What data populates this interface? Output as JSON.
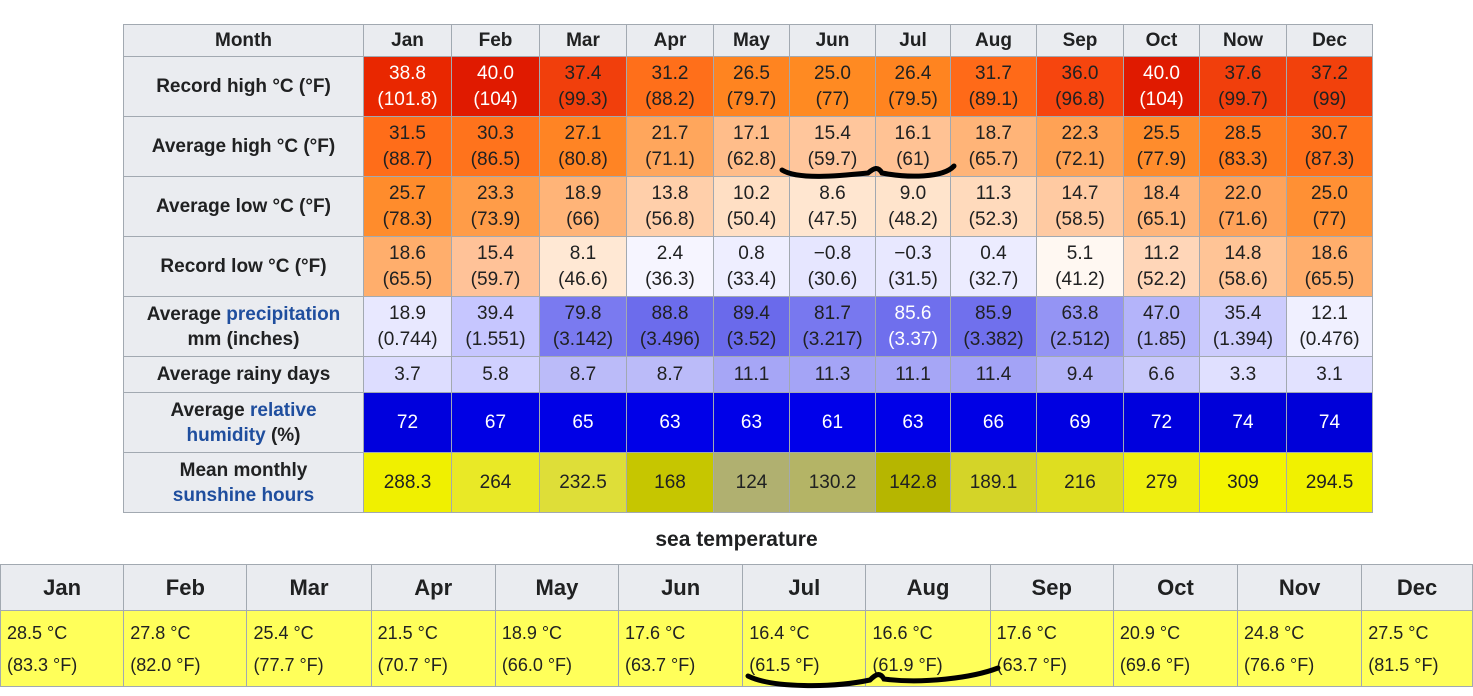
{
  "climate_table": {
    "header_label": "Month",
    "months": [
      "Jan",
      "Feb",
      "Mar",
      "Apr",
      "May",
      "Jun",
      "Jul",
      "Aug",
      "Sep",
      "Oct",
      "Now",
      "Dec"
    ],
    "rows": [
      {
        "label": "Record high °C (°F)",
        "cells": [
          {
            "c": "38.8",
            "f": "(101.8)",
            "bg": "#e92700",
            "fg": "#ffffff"
          },
          {
            "c": "40.0",
            "f": "(104)",
            "bg": "#e01a00",
            "fg": "#ffffff"
          },
          {
            "c": "37.4",
            "f": "(99.3)",
            "bg": "#f13f0c",
            "fg": "#202122"
          },
          {
            "c": "31.2",
            "f": "(88.2)",
            "bg": "#ff6f1a",
            "fg": "#202122"
          },
          {
            "c": "26.5",
            "f": "(79.7)",
            "bg": "#ff8420",
            "fg": "#202122"
          },
          {
            "c": "25.0",
            "f": "(77)",
            "bg": "#ff8a22",
            "fg": "#202122"
          },
          {
            "c": "26.4",
            "f": "(79.5)",
            "bg": "#ff8420",
            "fg": "#202122"
          },
          {
            "c": "31.7",
            "f": "(89.1)",
            "bg": "#ff6a18",
            "fg": "#202122"
          },
          {
            "c": "36.0",
            "f": "(96.8)",
            "bg": "#f6450e",
            "fg": "#202122"
          },
          {
            "c": "40.0",
            "f": "(104)",
            "bg": "#e01a00",
            "fg": "#ffffff"
          },
          {
            "c": "37.6",
            "f": "(99.7)",
            "bg": "#f13f0c",
            "fg": "#202122"
          },
          {
            "c": "37.2",
            "f": "(99)",
            "bg": "#f2410c",
            "fg": "#202122"
          }
        ]
      },
      {
        "label": "Average high °C (°F)",
        "cells": [
          {
            "c": "31.5",
            "f": "(88.7)",
            "bg": "#ff6d19",
            "fg": "#202122"
          },
          {
            "c": "30.3",
            "f": "(86.5)",
            "bg": "#ff731c",
            "fg": "#202122"
          },
          {
            "c": "27.1",
            "f": "(80.8)",
            "bg": "#ff8424",
            "fg": "#202122"
          },
          {
            "c": "21.7",
            "f": "(71.1)",
            "bg": "#ffa65c",
            "fg": "#202122"
          },
          {
            "c": "17.1",
            "f": "(62.8)",
            "bg": "#ffbd8a",
            "fg": "#202122"
          },
          {
            "c": "15.4",
            "f": "(59.7)",
            "bg": "#ffc69c",
            "fg": "#202122"
          },
          {
            "c": "16.1",
            "f": "(61)",
            "bg": "#ffc294",
            "fg": "#202122"
          },
          {
            "c": "18.7",
            "f": "(65.7)",
            "bg": "#ffb478",
            "fg": "#202122"
          },
          {
            "c": "22.3",
            "f": "(72.1)",
            "bg": "#ffa255",
            "fg": "#202122"
          },
          {
            "c": "25.5",
            "f": "(77.9)",
            "bg": "#ff8c2c",
            "fg": "#202122"
          },
          {
            "c": "28.5",
            "f": "(83.3)",
            "bg": "#ff7c20",
            "fg": "#202122"
          },
          {
            "c": "30.7",
            "f": "(87.3)",
            "bg": "#ff711b",
            "fg": "#202122"
          }
        ]
      },
      {
        "label": "Average low °C (°F)",
        "cells": [
          {
            "c": "25.7",
            "f": "(78.3)",
            "bg": "#ff8c2c",
            "fg": "#202122"
          },
          {
            "c": "23.3",
            "f": "(73.9)",
            "bg": "#ff9c48",
            "fg": "#202122"
          },
          {
            "c": "18.9",
            "f": "(66)",
            "bg": "#ffb478",
            "fg": "#202122"
          },
          {
            "c": "13.8",
            "f": "(56.8)",
            "bg": "#ffcfaa",
            "fg": "#202122"
          },
          {
            "c": "10.2",
            "f": "(50.4)",
            "bg": "#ffdfc4",
            "fg": "#202122"
          },
          {
            "c": "8.6",
            "f": "(47.5)",
            "bg": "#ffe6d0",
            "fg": "#202122"
          },
          {
            "c": "9.0",
            "f": "(48.2)",
            "bg": "#ffe4cc",
            "fg": "#202122"
          },
          {
            "c": "11.3",
            "f": "(52.3)",
            "bg": "#ffdabc",
            "fg": "#202122"
          },
          {
            "c": "14.7",
            "f": "(58.5)",
            "bg": "#ffcaa2",
            "fg": "#202122"
          },
          {
            "c": "18.4",
            "f": "(65.1)",
            "bg": "#ffb67c",
            "fg": "#202122"
          },
          {
            "c": "22.0",
            "f": "(71.6)",
            "bg": "#ffa35a",
            "fg": "#202122"
          },
          {
            "c": "25.0",
            "f": "(77)",
            "bg": "#ff9034",
            "fg": "#202122"
          }
        ]
      },
      {
        "label": "Record low °C (°F)",
        "cells": [
          {
            "c": "18.6",
            "f": "(65.5)",
            "bg": "#ffae6c",
            "fg": "#202122"
          },
          {
            "c": "15.4",
            "f": "(59.7)",
            "bg": "#ffc298",
            "fg": "#202122"
          },
          {
            "c": "8.1",
            "f": "(46.6)",
            "bg": "#ffe8d4",
            "fg": "#202122"
          },
          {
            "c": "2.4",
            "f": "(36.3)",
            "bg": "#f6f5ff",
            "fg": "#202122"
          },
          {
            "c": "0.8",
            "f": "(33.4)",
            "bg": "#eeeeff",
            "fg": "#202122"
          },
          {
            "c": "−0.8",
            "f": "(30.6)",
            "bg": "#e6e6ff",
            "fg": "#202122"
          },
          {
            "c": "−0.3",
            "f": "(31.5)",
            "bg": "#e8e8ff",
            "fg": "#202122"
          },
          {
            "c": "0.4",
            "f": "(32.7)",
            "bg": "#ececff",
            "fg": "#202122"
          },
          {
            "c": "5.1",
            "f": "(41.2)",
            "bg": "#fff8f2",
            "fg": "#202122"
          },
          {
            "c": "11.2",
            "f": "(52.2)",
            "bg": "#ffd6b8",
            "fg": "#202122"
          },
          {
            "c": "14.8",
            "f": "(58.6)",
            "bg": "#ffc496",
            "fg": "#202122"
          },
          {
            "c": "18.6",
            "f": "(65.5)",
            "bg": "#ffae6c",
            "fg": "#202122"
          }
        ]
      },
      {
        "label_parts": [
          "Average ",
          "precipitation",
          "mm (inches)"
        ],
        "cells": [
          {
            "c": "18.9",
            "f": "(0.744)",
            "bg": "#e8e8ff",
            "fg": "#202122"
          },
          {
            "c": "39.4",
            "f": "(1.551)",
            "bg": "#c6c6ff",
            "fg": "#202122"
          },
          {
            "c": "79.8",
            "f": "(3.142)",
            "bg": "#7a7af0",
            "fg": "#202122"
          },
          {
            "c": "88.8",
            "f": "(3.496)",
            "bg": "#6c6cec",
            "fg": "#202122"
          },
          {
            "c": "89.4",
            "f": "(3.52)",
            "bg": "#6a6aeb",
            "fg": "#202122"
          },
          {
            "c": "81.7",
            "f": "(3.217)",
            "bg": "#7878ef",
            "fg": "#202122"
          },
          {
            "c": "85.6",
            "f": "(3.37)",
            "bg": "#6f6fed",
            "fg": "#ffffff"
          },
          {
            "c": "85.9",
            "f": "(3.382)",
            "bg": "#7070ed",
            "fg": "#202122"
          },
          {
            "c": "63.8",
            "f": "(2.512)",
            "bg": "#9494f4",
            "fg": "#202122"
          },
          {
            "c": "47.0",
            "f": "(1.85)",
            "bg": "#b4b4fa",
            "fg": "#202122"
          },
          {
            "c": "35.4",
            "f": "(1.394)",
            "bg": "#ccccfd",
            "fg": "#202122"
          },
          {
            "c": "12.1",
            "f": "(0.476)",
            "bg": "#f0f0ff",
            "fg": "#202122"
          }
        ]
      },
      {
        "label": "Average rainy days",
        "short": true,
        "cells": [
          {
            "c": "3.7",
            "bg": "#ddddff",
            "fg": "#202122"
          },
          {
            "c": "5.8",
            "bg": "#d0d0ff",
            "fg": "#202122"
          },
          {
            "c": "8.7",
            "bg": "#bbbbf9",
            "fg": "#202122"
          },
          {
            "c": "8.7",
            "bg": "#bbbbf9",
            "fg": "#202122"
          },
          {
            "c": "11.1",
            "bg": "#a6a6f6",
            "fg": "#202122"
          },
          {
            "c": "11.3",
            "bg": "#a4a4f6",
            "fg": "#202122"
          },
          {
            "c": "11.1",
            "bg": "#a6a6f6",
            "fg": "#202122"
          },
          {
            "c": "11.4",
            "bg": "#a3a3f6",
            "fg": "#202122"
          },
          {
            "c": "9.4",
            "bg": "#b4b4f8",
            "fg": "#202122"
          },
          {
            "c": "6.6",
            "bg": "#c9c9fb",
            "fg": "#202122"
          },
          {
            "c": "3.3",
            "bg": "#e0e0ff",
            "fg": "#202122"
          },
          {
            "c": "3.1",
            "bg": "#e2e2ff",
            "fg": "#202122"
          }
        ]
      },
      {
        "label_parts": [
          "Average ",
          "relative",
          "humidity",
          " (%)"
        ],
        "cells": [
          {
            "c": "72",
            "bg": "#0000dd",
            "fg": "#ffffff"
          },
          {
            "c": "67",
            "bg": "#0000e4",
            "fg": "#ffffff"
          },
          {
            "c": "65",
            "bg": "#0000e6",
            "fg": "#ffffff"
          },
          {
            "c": "63",
            "bg": "#0000e8",
            "fg": "#ffffff"
          },
          {
            "c": "63",
            "bg": "#0000e8",
            "fg": "#ffffff"
          },
          {
            "c": "61",
            "bg": "#0000ea",
            "fg": "#ffffff"
          },
          {
            "c": "63",
            "bg": "#0000e8",
            "fg": "#ffffff"
          },
          {
            "c": "66",
            "bg": "#0000e5",
            "fg": "#ffffff"
          },
          {
            "c": "69",
            "bg": "#0000e1",
            "fg": "#ffffff"
          },
          {
            "c": "72",
            "bg": "#0000dd",
            "fg": "#ffffff"
          },
          {
            "c": "74",
            "bg": "#0000d9",
            "fg": "#ffffff"
          },
          {
            "c": "74",
            "bg": "#0000d9",
            "fg": "#ffffff"
          }
        ]
      },
      {
        "label_parts": [
          "Mean monthly",
          "sunshine hours"
        ],
        "cells": [
          {
            "c": "288.3",
            "bg": "#f0f000",
            "fg": "#202122"
          },
          {
            "c": "264",
            "bg": "#e9e926",
            "fg": "#202122"
          },
          {
            "c": "232.5",
            "bg": "#dede38",
            "fg": "#202122"
          },
          {
            "c": "168",
            "bg": "#c6c600",
            "fg": "#202122"
          },
          {
            "c": "124",
            "bg": "#b0b070",
            "fg": "#202122"
          },
          {
            "c": "130.2",
            "bg": "#b4b466",
            "fg": "#202122"
          },
          {
            "c": "142.8",
            "bg": "#b6b600",
            "fg": "#202122"
          },
          {
            "c": "189.1",
            "bg": "#d4d428",
            "fg": "#202122"
          },
          {
            "c": "216",
            "bg": "#dede20",
            "fg": "#202122"
          },
          {
            "c": "279",
            "bg": "#efef10",
            "fg": "#202122"
          },
          {
            "c": "309",
            "bg": "#f4f400",
            "fg": "#202122"
          },
          {
            "c": "294.5",
            "bg": "#f1f100",
            "fg": "#202122"
          }
        ]
      }
    ]
  },
  "sea_temperature": {
    "title": "sea temperature",
    "months": [
      "Jan",
      "Feb",
      "Mar",
      "Apr",
      "May",
      "Jun",
      "Jul",
      "Aug",
      "Sep",
      "Oct",
      "Nov",
      "Dec"
    ],
    "values_c": [
      "28.5 °C",
      "27.8 °C",
      "25.4 °C",
      "21.5 °C",
      "18.9 °C",
      "17.6 °C",
      "16.4 °C",
      "16.6 °C",
      "17.6 °C",
      "20.9 °C",
      "24.8 °C",
      "27.5 °C"
    ],
    "values_f": [
      "(83.3 °F)",
      "(82.0 °F)",
      "(77.7 °F)",
      "(70.7 °F)",
      "(66.0 °F)",
      "(63.7 °F)",
      "(61.5 °F)",
      "(61.9 °F)",
      "(63.7 °F)",
      "(69.6 °F)",
      "(76.6 °F)",
      "(81.5 °F)"
    ]
  },
  "colors": {
    "header_bg": "#eaecf0",
    "border": "#a2a9b1",
    "link_blue": "#1f4e9e",
    "sea_cell_bg": "#ffff5a",
    "annotation_ink": "#000000"
  }
}
